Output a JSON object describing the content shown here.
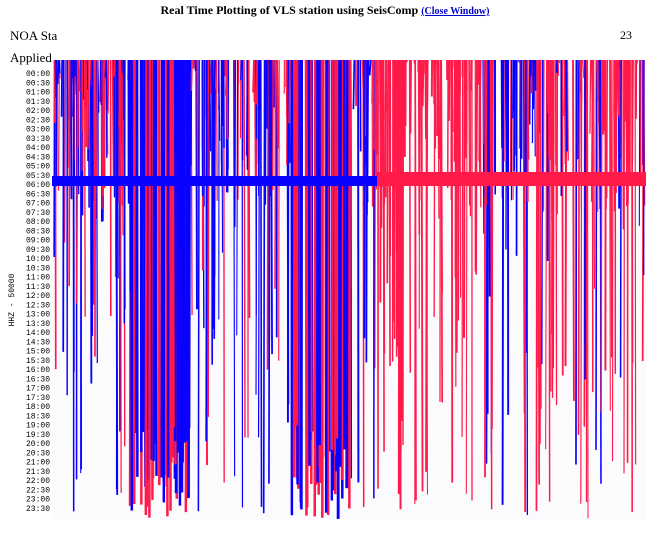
{
  "title": "Real Time Plotting of VLS station using SeisComp",
  "close_link": "(Close Window)",
  "header_left": "NOA Sta",
  "header_left_2": "Applied",
  "header_right": "23",
  "axis_label": "HHZ - 50000",
  "times": [
    "00:00",
    "00:30",
    "01:00",
    "01:30",
    "02:00",
    "02:30",
    "03:00",
    "03:30",
    "04:00",
    "04:30",
    "05:00",
    "05:30",
    "06:00",
    "06:30",
    "07:00",
    "07:30",
    "08:00",
    "08:30",
    "09:00",
    "09:30",
    "10:00",
    "10:30",
    "11:00",
    "11:30",
    "12:00",
    "12:30",
    "13:00",
    "13:30",
    "14:00",
    "14:30",
    "15:00",
    "15:30",
    "16:00",
    "16:30",
    "17:00",
    "17:30",
    "18:00",
    "18:30",
    "19:00",
    "19:30",
    "20:00",
    "20:30",
    "21:00",
    "21:30",
    "22:00",
    "22:30",
    "23:00",
    "23:30"
  ]
}
